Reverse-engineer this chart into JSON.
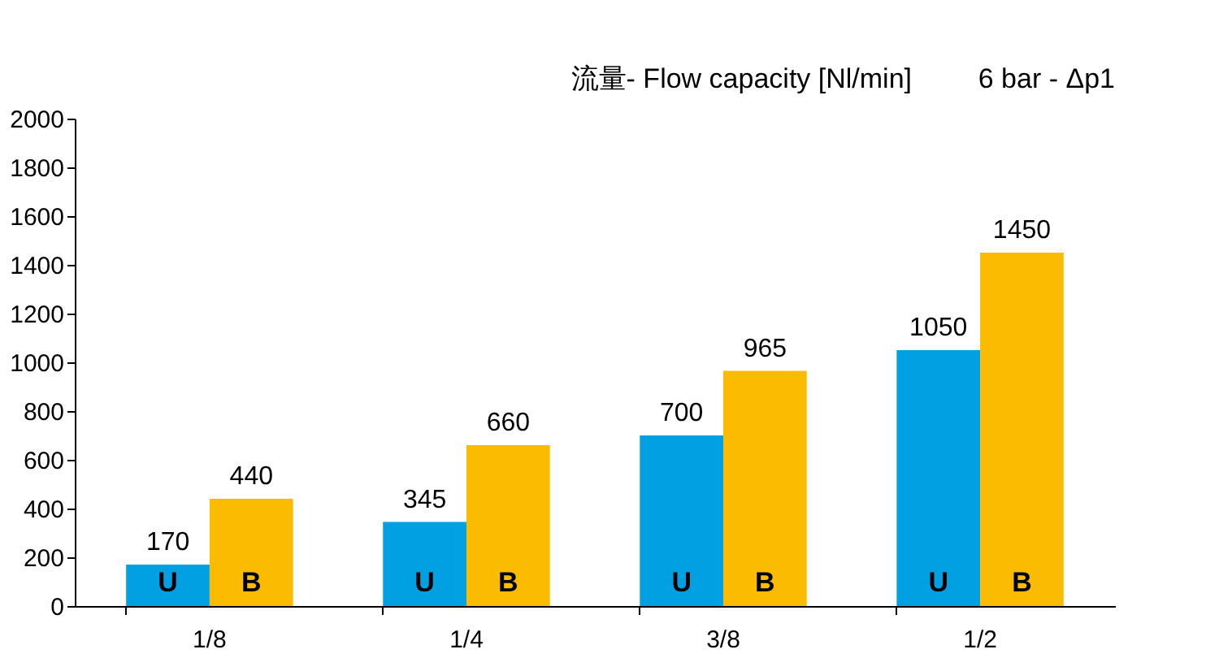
{
  "chart_data": {
    "type": "bar",
    "title": "流量- Flow capacity [Nl/min]",
    "subtitle": "6 bar - Δp1",
    "categories": [
      "1/8",
      "1/4",
      "3/8",
      "1/2"
    ],
    "series": [
      {
        "name": "U",
        "color": "#00a0e3",
        "values": [
          170,
          345,
          700,
          1050
        ]
      },
      {
        "name": "B",
        "color": "#fbbb00",
        "values": [
          440,
          660,
          965,
          1450
        ]
      }
    ],
    "ylim": [
      0,
      2000
    ],
    "yticks": [
      0,
      200,
      400,
      600,
      800,
      1000,
      1200,
      1400,
      1600,
      1800,
      2000
    ],
    "grid": false,
    "data_labels": true
  }
}
